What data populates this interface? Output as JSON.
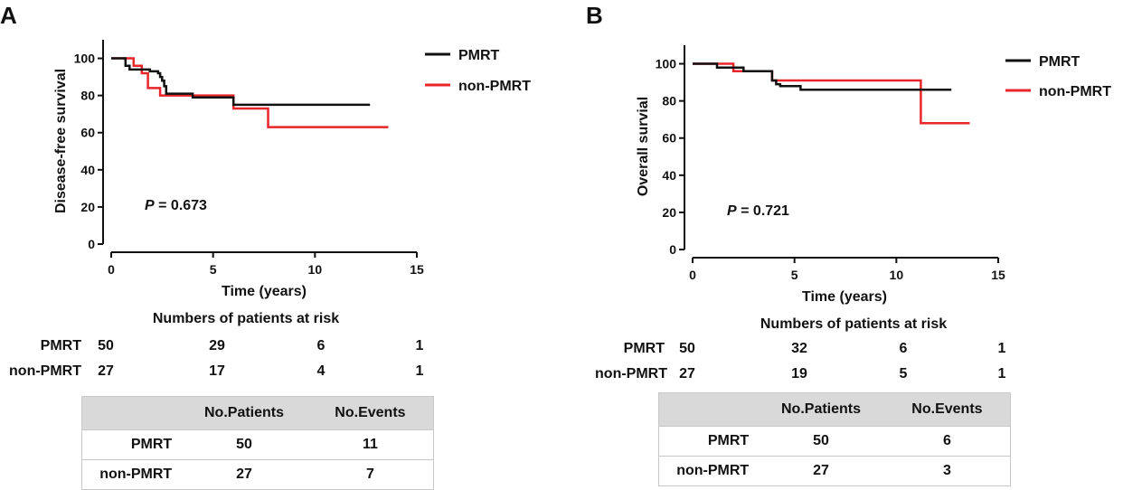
{
  "panels": [
    {
      "letter": "A",
      "p_prefix": "P",
      "p_value": "= 0.673",
      "risk_title": "Numbers of patients at risk",
      "risk_rows": [
        {
          "label": "PMRT",
          "values": [
            "50",
            "29",
            "6",
            "1"
          ]
        },
        {
          "label": "non-PMRT",
          "values": [
            "27",
            "17",
            "4",
            "1"
          ]
        }
      ],
      "table": {
        "headers": [
          "",
          "No.Patients",
          "No.Events"
        ],
        "rows": [
          [
            "PMRT",
            "50",
            "11"
          ],
          [
            "non-PMRT",
            "27",
            "7"
          ]
        ]
      }
    },
    {
      "letter": "B",
      "p_prefix": "P",
      "p_value": "= 0.721",
      "risk_title": "Numbers of patients at risk",
      "risk_rows": [
        {
          "label": "PMRT",
          "values": [
            "50",
            "32",
            "6",
            "1"
          ]
        },
        {
          "label": "non-PMRT",
          "values": [
            "27",
            "19",
            "5",
            "1"
          ]
        }
      ],
      "table": {
        "headers": [
          "",
          "No.Patients",
          "No.Events"
        ],
        "rows": [
          [
            "PMRT",
            "50",
            "6"
          ],
          [
            "non-PMRT",
            "27",
            "3"
          ]
        ]
      }
    }
  ],
  "chart_data": [
    {
      "type": "line",
      "title": "",
      "xlabel": "Time (years)",
      "ylabel": "Disease-free survival",
      "xlim": [
        0,
        15
      ],
      "ylim": [
        0,
        110
      ],
      "xticks": [
        0,
        5,
        10,
        15
      ],
      "yticks": [
        0,
        20,
        40,
        60,
        80,
        100
      ],
      "legend_position": "top-right",
      "series": [
        {
          "name": "PMRT",
          "color": "#111111",
          "x": [
            0,
            0.7,
            0.7,
            0.9,
            0.9,
            1.9,
            1.9,
            2.3,
            2.3,
            2.4,
            2.4,
            2.5,
            2.5,
            2.6,
            2.6,
            2.7,
            2.7,
            4.0,
            4.0,
            6.0,
            6.0,
            12.7
          ],
          "y": [
            100,
            100,
            96,
            96,
            94,
            94,
            93,
            93,
            92,
            92,
            90,
            90,
            88,
            88,
            85,
            85,
            81,
            81,
            79,
            79,
            75,
            75
          ]
        },
        {
          "name": "non-PMRT",
          "color": "#e8262a",
          "x": [
            0,
            1.1,
            1.1,
            1.5,
            1.5,
            1.8,
            1.8,
            2.4,
            2.4,
            6.0,
            6.0,
            7.7,
            7.7,
            13.6
          ],
          "y": [
            100,
            100,
            96,
            96,
            92,
            92,
            84,
            84,
            80,
            80,
            73,
            73,
            63,
            63
          ]
        }
      ]
    },
    {
      "type": "line",
      "title": "",
      "xlabel": "Time (years)",
      "ylabel": "Overall survial",
      "xlim": [
        0,
        15
      ],
      "ylim": [
        0,
        110
      ],
      "xticks": [
        0,
        5,
        10,
        15
      ],
      "yticks": [
        0,
        20,
        40,
        60,
        80,
        100
      ],
      "legend_position": "top-right",
      "series": [
        {
          "name": "PMRT",
          "color": "#111111",
          "x": [
            0,
            1.2,
            1.2,
            2.5,
            2.5,
            3.9,
            3.9,
            4.1,
            4.1,
            4.3,
            4.3,
            5.3,
            5.3,
            12.7
          ],
          "y": [
            100,
            100,
            98,
            98,
            96,
            96,
            91,
            91,
            89,
            89,
            88,
            88,
            86,
            86
          ]
        },
        {
          "name": "non-PMRT",
          "color": "#e8262a",
          "x": [
            0,
            2.0,
            2.0,
            3.9,
            3.9,
            5.0,
            5.0,
            11.2,
            11.2,
            13.6
          ],
          "y": [
            100,
            100,
            96,
            96,
            91,
            91,
            91,
            91,
            68,
            68
          ]
        }
      ]
    }
  ]
}
